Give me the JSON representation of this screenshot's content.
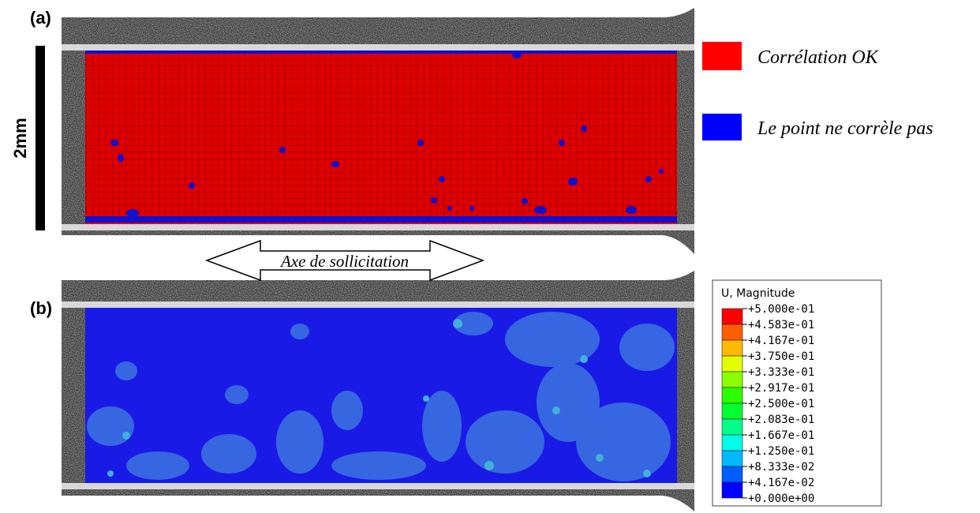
{
  "panel_a": {
    "label": "(a)",
    "scale_bar": "2mm",
    "legend": [
      {
        "label": "Corrélation OK"
      },
      {
        "label": "Le point ne corrèle pas"
      }
    ]
  },
  "arrow": {
    "label": "Axe de sollicitation"
  },
  "panel_b": {
    "label": "(b)",
    "colorbar": {
      "title": "U, Magnitude",
      "ticks": [
        "+5.000e-01",
        "+4.583e-01",
        "+4.167e-01",
        "+3.750e-01",
        "+3.333e-01",
        "+2.917e-01",
        "+2.500e-01",
        "+2.083e-01",
        "+1.667e-01",
        "+1.250e-01",
        "+8.333e-02",
        "+4.167e-02",
        "+0.000e+00"
      ]
    }
  }
}
